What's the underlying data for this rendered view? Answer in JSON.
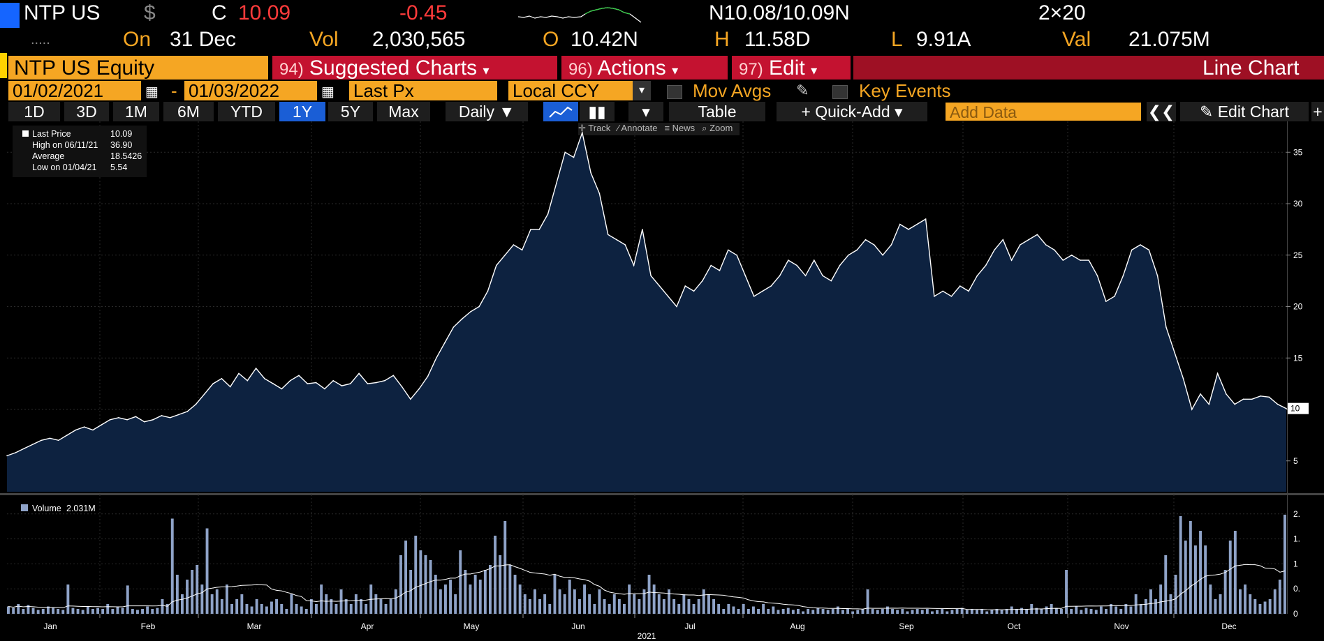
{
  "header": {
    "ticker": "NTP US",
    "currency_symbol": "$",
    "c_label": "C",
    "last": "10.09",
    "change": "-0.45",
    "bidask": "N10.08/10.09N",
    "size": "2×20",
    "dots": ".....",
    "on_label": "On",
    "date": "31 Dec",
    "vol_label": "Vol",
    "vol": "2,030,565",
    "open_label": "O",
    "open": "10.42N",
    "high_label": "H",
    "high": "11.58D",
    "low_label": "L",
    "low": "9.91A",
    "val_label": "Val",
    "val": "21.075M"
  },
  "toolbar": {
    "equity": "NTP US Equity",
    "suggested_num": "94)",
    "suggested": "Suggested Charts",
    "actions_num": "96)",
    "actions": "Actions",
    "edit_num": "97)",
    "edit": "Edit",
    "chart_type": "Line Chart"
  },
  "settings": {
    "start_date": "01/02/2021",
    "dash": "-",
    "end_date": "01/03/2022",
    "field": "Last Px",
    "ccy": "Local CCY",
    "mov_avgs": "Mov Avgs",
    "key_events": "Key Events"
  },
  "ranges": [
    "1D",
    "3D",
    "1M",
    "6M",
    "YTD",
    "1Y",
    "5Y",
    "Max"
  ],
  "active_range": "1Y",
  "controls": {
    "periodicity": "Daily",
    "table": "Table",
    "quick_add": "Quick-Add",
    "add_data_placeholder": "Add Data",
    "edit_chart": "Edit Chart"
  },
  "tools": [
    "Track",
    "Annotate",
    "News",
    "Zoom"
  ],
  "colors": {
    "orange": "#f5a623",
    "red_button": "#c41230",
    "active_blue": "#1a5ed6",
    "area_fill": "#0d2240",
    "volume_bar": "#8fa3c8"
  },
  "chart_data": [
    {
      "type": "area",
      "legend": [
        {
          "label": "Last Price",
          "value": "10.09"
        },
        {
          "label": "High on 06/11/21",
          "value": "36.90"
        },
        {
          "label": "Average",
          "value": "18.5426"
        },
        {
          "label": "Low on 01/04/21",
          "value": "5.54"
        }
      ],
      "y_ticks": [
        "35",
        "30",
        "25",
        "20",
        "15",
        "10",
        "5"
      ],
      "ylim": [
        2,
        38
      ],
      "last_label": "10",
      "x_ticks": [
        "Jan",
        "Feb",
        "Mar",
        "Apr",
        "May",
        "Jun",
        "Jul",
        "Aug",
        "Sep",
        "Oct",
        "Nov",
        "Dec"
      ],
      "xlabel": "2021",
      "series": [
        {
          "values": [
            5.5,
            5.8,
            6.2,
            6.6,
            7.0,
            7.2,
            7.0,
            7.5,
            8.0,
            8.3,
            8.0,
            8.5,
            9.0,
            9.2,
            9.0,
            9.3,
            8.8,
            9.0,
            9.4,
            9.2,
            9.5,
            9.8,
            10.5,
            11.5,
            12.5,
            13.0,
            12.2,
            13.5,
            12.8,
            14.0,
            13.0,
            12.5,
            12.0,
            12.8,
            13.3,
            12.5,
            12.6,
            12.0,
            12.8,
            12.3,
            12.5,
            13.5,
            12.5,
            12.6,
            12.8,
            13.3,
            12.2,
            11.0,
            12.0,
            13.2,
            15.0,
            16.5,
            18.0,
            18.8,
            19.5,
            20.0,
            21.5,
            24.0,
            25.0,
            26.0,
            25.5,
            27.5,
            27.5,
            29.0,
            32.0,
            35.0,
            34.5,
            36.9,
            33.0,
            31.0,
            27.0,
            26.5,
            26.0,
            24.0,
            27.5,
            23.0,
            22.0,
            21.0,
            20.0,
            22.0,
            21.5,
            22.5,
            24.0,
            23.5,
            25.5,
            25.0,
            23.0,
            21.0,
            21.5,
            22.0,
            23.0,
            24.5,
            24.0,
            23.0,
            24.5,
            23.0,
            22.5,
            24.0,
            25.0,
            25.5,
            26.5,
            26.0,
            25.0,
            26.0,
            28.0,
            27.5,
            28.0,
            28.5,
            21.0,
            21.5,
            21.0,
            22.0,
            21.5,
            23.0,
            24.0,
            25.5,
            26.5,
            24.5,
            26.0,
            26.5,
            27.0,
            26.0,
            25.5,
            24.5,
            25.0,
            24.5,
            24.5,
            23.0,
            20.5,
            21.0,
            23.0,
            25.5,
            26.0,
            25.5,
            23.0,
            18.0,
            15.5,
            13.0,
            10.0,
            11.5,
            10.5,
            13.5,
            11.5,
            10.5,
            11.0,
            11.0,
            11.3,
            11.2,
            10.5,
            10.09
          ]
        }
      ]
    },
    {
      "type": "bar",
      "legend": [
        {
          "label": "Volume",
          "value": "2.031M"
        }
      ],
      "y_ticks": [
        "2.",
        "1.",
        "1",
        "0.",
        "0"
      ],
      "ylim": [
        0,
        2.2
      ],
      "series": [
        {
          "name": "Volume",
          "values": [
            0.15,
            0.12,
            0.2,
            0.1,
            0.18,
            0.12,
            0.08,
            0.1,
            0.15,
            0.12,
            0.1,
            0.08,
            0.6,
            0.12,
            0.1,
            0.08,
            0.15,
            0.1,
            0.12,
            0.1,
            0.2,
            0.1,
            0.15,
            0.12,
            0.58,
            0.1,
            0.08,
            0.1,
            0.15,
            0.1,
            0.12,
            0.3,
            0.2,
            1.95,
            0.8,
            0.4,
            0.7,
            0.9,
            1.0,
            0.6,
            1.75,
            0.4,
            0.5,
            0.3,
            0.6,
            0.2,
            0.3,
            0.4,
            0.2,
            0.15,
            0.3,
            0.2,
            0.15,
            0.25,
            0.3,
            0.2,
            0.1,
            0.4,
            0.2,
            0.15,
            0.1,
            0.3,
            0.2,
            0.6,
            0.4,
            0.3,
            0.2,
            0.5,
            0.3,
            0.2,
            0.4,
            0.3,
            0.2,
            0.6,
            0.4,
            0.3,
            0.2,
            0.3,
            0.5,
            1.2,
            1.5,
            0.9,
            1.6,
            1.3,
            1.2,
            1.1,
            0.8,
            0.5,
            0.6,
            0.7,
            0.4,
            1.3,
            0.9,
            0.6,
            0.8,
            0.7,
            0.9,
            1.0,
            1.6,
            1.2,
            1.9,
            1.0,
            0.8,
            0.6,
            0.4,
            0.3,
            0.5,
            0.3,
            0.4,
            0.2,
            0.8,
            0.5,
            0.4,
            0.7,
            0.5,
            0.3,
            0.6,
            0.4,
            0.2,
            0.5,
            0.3,
            0.2,
            0.4,
            0.3,
            0.2,
            0.6,
            0.4,
            0.3,
            0.5,
            0.8,
            0.6,
            0.4,
            0.3,
            0.5,
            0.3,
            0.2,
            0.4,
            0.3,
            0.2,
            0.3,
            0.5,
            0.4,
            0.3,
            0.2,
            0.1,
            0.2,
            0.15,
            0.1,
            0.2,
            0.1,
            0.15,
            0.1,
            0.2,
            0.1,
            0.15,
            0.08,
            0.1,
            0.12,
            0.08,
            0.1,
            0.05,
            0.1,
            0.08,
            0.12,
            0.1,
            0.08,
            0.1,
            0.15,
            0.08,
            0.1,
            0.05,
            0.08,
            0.1,
            0.5,
            0.1,
            0.08,
            0.1,
            0.15,
            0.1,
            0.08,
            0.1,
            0.05,
            0.08,
            0.1,
            0.08,
            0.1,
            0.05,
            0.08,
            0.1,
            0.05,
            0.08,
            0.1,
            0.12,
            0.08,
            0.1,
            0.08,
            0.1,
            0.05,
            0.08,
            0.1,
            0.08,
            0.1,
            0.15,
            0.1,
            0.12,
            0.1,
            0.2,
            0.12,
            0.1,
            0.15,
            0.2,
            0.12,
            0.1,
            0.9,
            0.1,
            0.15,
            0.08,
            0.12,
            0.1,
            0.08,
            0.15,
            0.1,
            0.2,
            0.15,
            0.1,
            0.2,
            0.15,
            0.4,
            0.2,
            0.3,
            0.5,
            0.3,
            0.6,
            1.2,
            0.4,
            0.8,
            2.0,
            1.5,
            1.9,
            1.4,
            1.7,
            1.4,
            0.6,
            0.3,
            0.4,
            0.9,
            1.5,
            1.7,
            0.5,
            0.6,
            0.4,
            0.3,
            0.2,
            0.25,
            0.3,
            0.5,
            0.7,
            2.03
          ]
        }
      ]
    }
  ]
}
